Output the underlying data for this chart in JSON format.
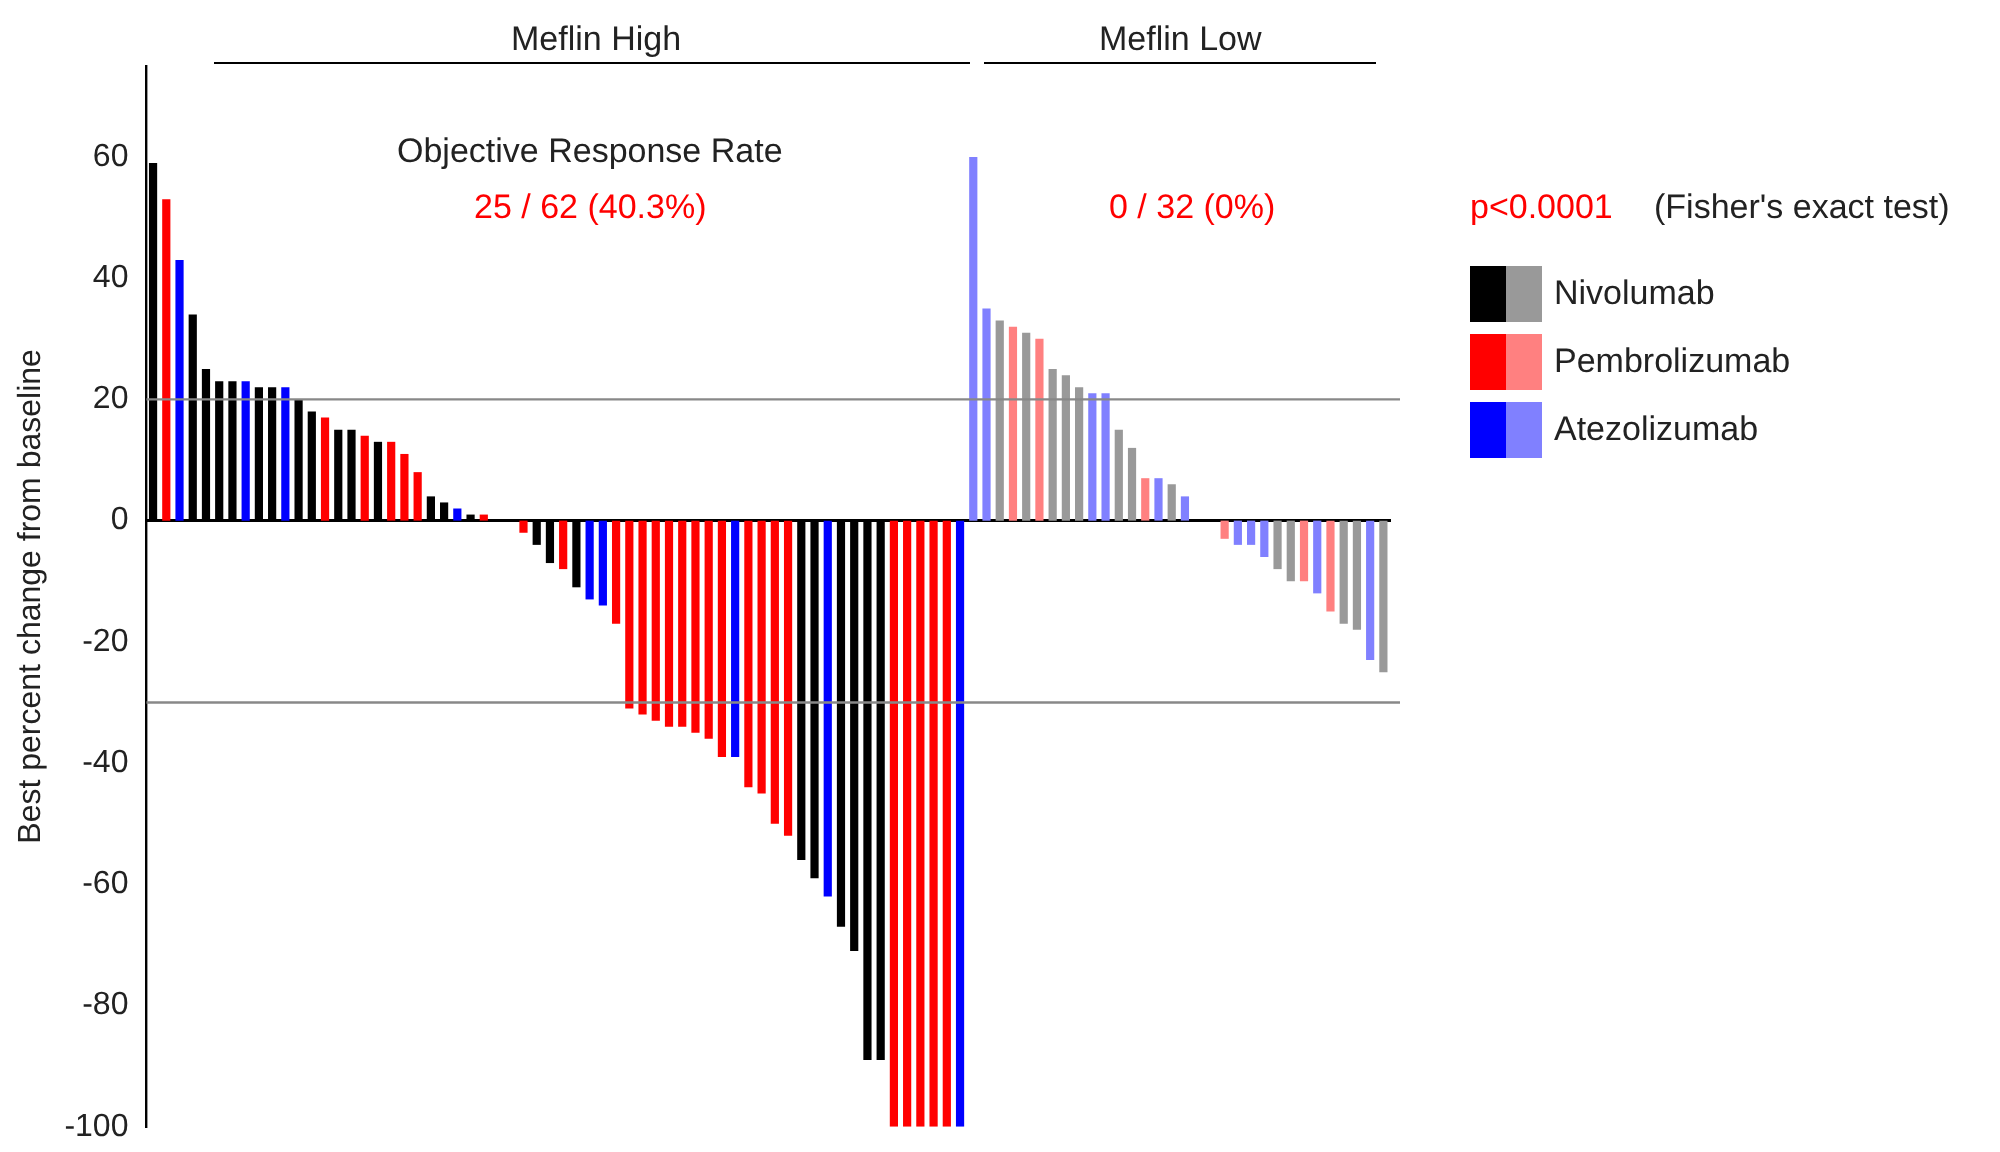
{
  "chart_data": {
    "type": "bar",
    "categories": [
      null,
      null,
      null,
      null,
      null,
      null,
      null,
      null,
      null,
      null,
      null,
      null,
      null,
      null,
      null,
      null,
      null,
      null,
      null,
      null,
      null,
      null,
      null,
      null,
      null,
      null,
      null,
      null,
      null,
      null,
      null,
      null,
      null,
      null,
      null,
      null,
      null,
      null,
      null,
      null,
      null,
      null,
      null,
      null,
      null,
      null,
      null,
      null,
      null,
      null,
      null,
      null,
      null,
      null,
      null,
      null,
      null,
      null,
      null,
      null,
      null,
      null,
      null,
      null,
      null,
      null,
      null,
      null,
      null,
      null,
      null,
      null,
      null,
      null,
      null,
      null,
      null,
      null,
      null,
      null,
      null,
      null,
      null,
      null,
      null,
      null,
      null,
      null,
      null,
      null,
      null,
      null,
      null,
      null
    ],
    "series": [
      {
        "name": "Nivolumab",
        "color": "#000000",
        "values": [
          59,
          null,
          null,
          34,
          25,
          23,
          23,
          null,
          22,
          22,
          null,
          20,
          18,
          null,
          15,
          15,
          null,
          13,
          null,
          null,
          null,
          4,
          3,
          null,
          1,
          null,
          0,
          0,
          null,
          -4,
          -7,
          null,
          -11,
          null,
          null,
          null,
          null,
          null,
          null,
          null,
          null,
          null,
          null,
          null,
          null,
          null,
          null,
          null,
          null,
          -56,
          -59,
          null,
          -67,
          -71,
          -89,
          -89,
          null,
          null,
          null,
          null,
          null,
          null,
          null,
          null,
          33,
          null,
          31,
          null,
          25,
          24,
          22,
          null,
          null,
          15,
          12,
          null,
          null,
          6,
          null,
          0,
          0,
          null,
          null,
          null,
          null,
          -8,
          -10,
          null,
          null,
          null,
          -17,
          -18,
          null,
          -25
        ],
        "colors": [
          "#000000",
          null,
          null,
          "#000000",
          "#000000",
          "#000000",
          "#000000",
          null,
          "#000000",
          "#000000",
          null,
          "#000000",
          "#000000",
          null,
          "#000000",
          "#000000",
          null,
          "#000000",
          null,
          null,
          null,
          "#000000",
          "#000000",
          null,
          "#000000",
          null,
          "#000000",
          "#000000",
          null,
          "#000000",
          "#000000",
          null,
          "#000000",
          null,
          null,
          null,
          null,
          null,
          null,
          null,
          null,
          null,
          null,
          null,
          null,
          null,
          null,
          null,
          null,
          "#000000",
          "#000000",
          null,
          "#000000",
          "#000000",
          "#000000",
          "#000000",
          null,
          null,
          null,
          null,
          null,
          null,
          null,
          null,
          "#999999",
          null,
          "#999999",
          null,
          "#999999",
          "#999999",
          "#999999",
          null,
          null,
          "#999999",
          "#999999",
          null,
          null,
          "#999999",
          null,
          "#999999",
          "#999999",
          null,
          null,
          null,
          null,
          "#999999",
          "#999999",
          null,
          null,
          null,
          "#999999",
          "#999999",
          null,
          "#999999"
        ]
      },
      {
        "name": "Pembrolizumab",
        "color": "#ff0000",
        "values": [
          null,
          53,
          null,
          null,
          null,
          null,
          null,
          null,
          null,
          null,
          null,
          null,
          null,
          17,
          null,
          null,
          14,
          null,
          13,
          11,
          8,
          null,
          null,
          null,
          null,
          1,
          null,
          null,
          -2,
          null,
          null,
          -8,
          null,
          null,
          null,
          -17,
          -31,
          -32,
          -33,
          -34,
          -34,
          -35,
          -36,
          -39,
          null,
          -44,
          -45,
          -50,
          -52,
          null,
          null,
          null,
          null,
          null,
          null,
          null,
          -100,
          -100,
          -100,
          -100,
          -100,
          null,
          null,
          null,
          null,
          32,
          null,
          30,
          null,
          null,
          null,
          null,
          null,
          null,
          null,
          7,
          null,
          null,
          null,
          null,
          null,
          -3,
          null,
          null,
          null,
          null,
          null,
          -10,
          null,
          -15,
          null,
          null,
          null,
          null
        ],
        "colors": [
          null,
          "#ff0000",
          null,
          null,
          null,
          null,
          null,
          null,
          null,
          null,
          null,
          null,
          null,
          "#ff0000",
          null,
          null,
          "#ff0000",
          null,
          "#ff0000",
          "#ff0000",
          "#ff0000",
          null,
          null,
          null,
          null,
          "#ff0000",
          null,
          null,
          "#ff0000",
          null,
          null,
          "#ff0000",
          null,
          null,
          null,
          "#ff0000",
          "#ff0000",
          "#ff0000",
          "#ff0000",
          "#ff0000",
          "#ff0000",
          "#ff0000",
          "#ff0000",
          "#ff0000",
          null,
          "#ff0000",
          "#ff0000",
          "#ff0000",
          "#ff0000",
          null,
          null,
          null,
          null,
          null,
          null,
          null,
          "#ff0000",
          "#ff0000",
          "#ff0000",
          "#ff0000",
          "#ff0000",
          null,
          null,
          null,
          null,
          "#ff8080",
          null,
          "#ff8080",
          null,
          null,
          null,
          null,
          null,
          null,
          null,
          "#ff8080",
          null,
          null,
          null,
          null,
          null,
          "#ff8080",
          null,
          null,
          null,
          null,
          null,
          "#ff8080",
          null,
          "#ff8080",
          null,
          null,
          null,
          null
        ]
      },
      {
        "name": "Atezolizumab",
        "color": "#0000ff",
        "values": [
          null,
          null,
          43,
          null,
          null,
          null,
          null,
          23,
          null,
          null,
          22,
          null,
          null,
          null,
          null,
          null,
          null,
          null,
          null,
          null,
          null,
          null,
          null,
          2,
          null,
          null,
          null,
          null,
          null,
          null,
          null,
          null,
          null,
          -13,
          -14,
          null,
          null,
          null,
          null,
          null,
          null,
          null,
          null,
          null,
          -39,
          null,
          null,
          null,
          null,
          null,
          null,
          -62,
          null,
          null,
          null,
          null,
          null,
          null,
          null,
          null,
          null,
          -100,
          60,
          35,
          null,
          null,
          null,
          null,
          null,
          null,
          null,
          21,
          21,
          null,
          null,
          null,
          7,
          null,
          4,
          null,
          null,
          null,
          -4,
          -4,
          -6,
          null,
          null,
          null,
          -12,
          null,
          null,
          null,
          -23,
          null
        ],
        "colors": [
          null,
          null,
          "#0000ff",
          null,
          null,
          null,
          null,
          "#0000ff",
          null,
          null,
          "#0000ff",
          null,
          null,
          null,
          null,
          null,
          null,
          null,
          null,
          null,
          null,
          null,
          null,
          "#0000ff",
          null,
          null,
          null,
          null,
          null,
          null,
          null,
          null,
          null,
          "#0000ff",
          "#0000ff",
          null,
          null,
          null,
          null,
          null,
          null,
          null,
          null,
          null,
          "#0000ff",
          null,
          null,
          null,
          null,
          null,
          null,
          "#0000ff",
          null,
          null,
          null,
          null,
          null,
          null,
          null,
          null,
          null,
          "#0000ff",
          "#8080ff",
          "#8080ff",
          null,
          null,
          null,
          null,
          null,
          null,
          null,
          "#8080ff",
          "#8080ff",
          null,
          null,
          null,
          "#8080ff",
          null,
          "#8080ff",
          null,
          null,
          null,
          "#8080ff",
          "#8080ff",
          "#8080ff",
          null,
          null,
          null,
          "#8080ff",
          null,
          null,
          null,
          "#8080ff",
          null
        ]
      }
    ],
    "ylabel": "Best percent change from baseline",
    "ylim": [
      -100,
      75
    ],
    "yticks": [
      -100,
      -80,
      -60,
      -40,
      -20,
      0,
      20,
      40,
      60
    ],
    "ref_lines": [
      {
        "axis": "y",
        "value": 20,
        "color": "#888888"
      },
      {
        "axis": "y",
        "value": -30,
        "color": "#888888"
      }
    ],
    "annotations": [
      "Meflin High",
      "Meflin Low",
      "Objective Response Rate",
      "25 / 62 (40.3%)",
      "0 / 32 (0%)",
      "p<0.0001",
      "(Fisher's exact test)"
    ],
    "legend": "right",
    "grid": false
  }
}
